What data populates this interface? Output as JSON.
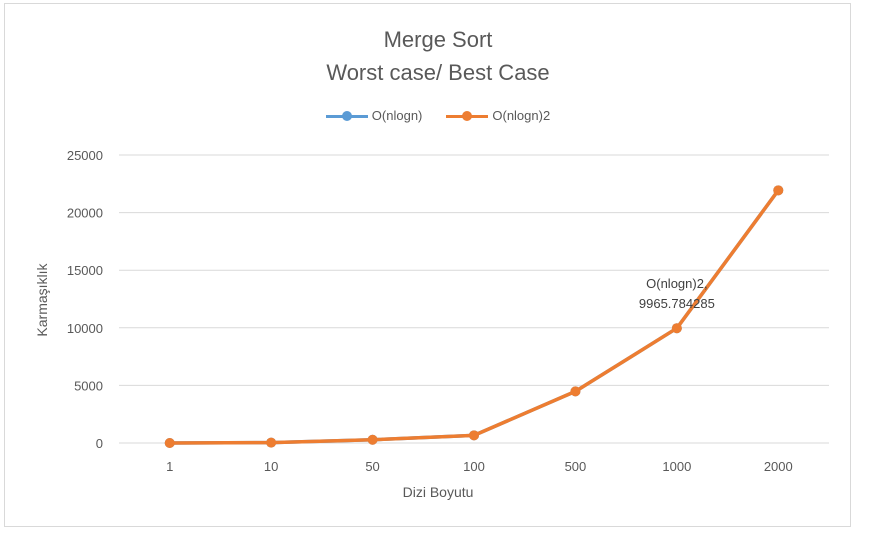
{
  "chart_data": {
    "type": "line",
    "title": "Merge Sort",
    "subtitle": "Worst case/ Best Case",
    "xlabel": "Dizi Boyutu",
    "ylabel": "Karmaşıklık",
    "categories": [
      "1",
      "10",
      "50",
      "100",
      "500",
      "1000",
      "2000"
    ],
    "ylim": [
      0,
      25000
    ],
    "yticks": [
      "0",
      "5000",
      "10000",
      "15000",
      "20000",
      "25000"
    ],
    "grid": true,
    "legend_position": "top",
    "series": [
      {
        "name": "O(nlogn)",
        "color": "#5b9bd5",
        "values": [
          0,
          33.2,
          282.2,
          664.4,
          4482.9,
          9965.8,
          21931.6
        ]
      },
      {
        "name": "O(nlogn)2",
        "color": "#ed7d31",
        "values": [
          0,
          33.2,
          282.2,
          664.4,
          4482.9,
          9965.8,
          21931.6
        ]
      }
    ],
    "annotations": [
      {
        "series": "O(nlogn)2",
        "category": "1000",
        "line1": "O(nlogn)2,",
        "line2": "9965.784285"
      }
    ]
  }
}
